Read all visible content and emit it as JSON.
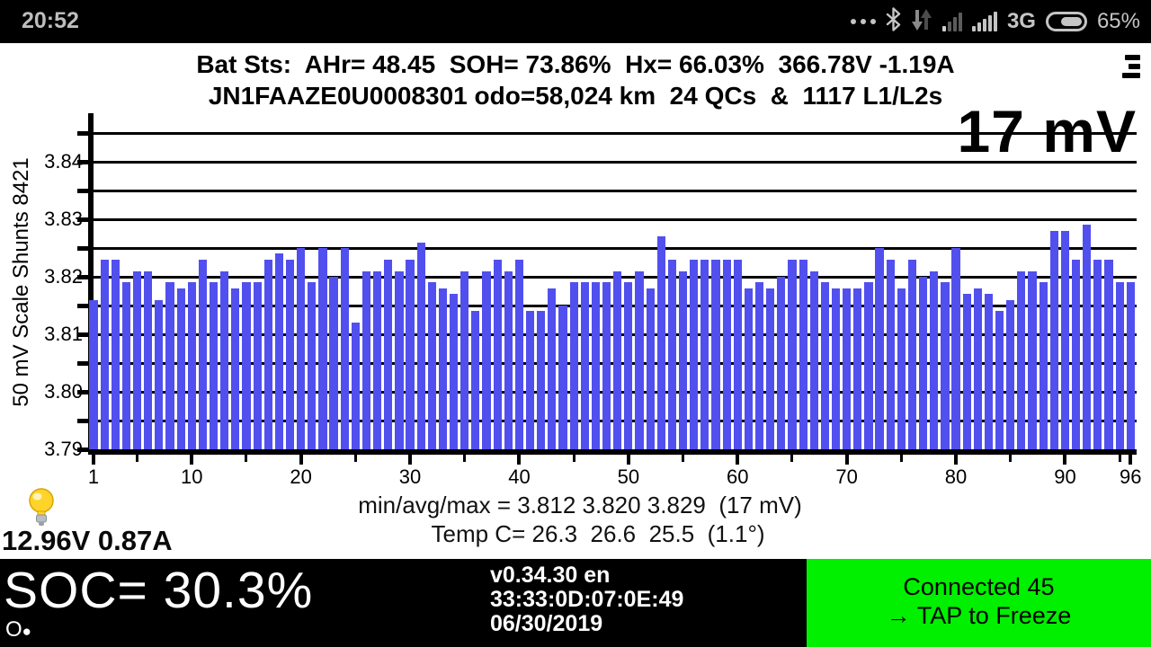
{
  "status_bar": {
    "time": "20:52",
    "network_mode": "3G",
    "battery_percent": "65%"
  },
  "header": {
    "line1": "Bat Sts:  AHr= 48.45  SOH= 73.86%  Hx= 66.03%  366.78V -1.19A",
    "line2": "JN1FAAZE0U0008301 odo=58,024 km  24 QCs  &  1117 L1/L2s"
  },
  "chart_data": {
    "type": "bar",
    "ylabel": "50 mV Scale  Shunts 8421",
    "annotation": "17 mV",
    "baseline": 3.79,
    "ylim": [
      3.79,
      3.8485
    ],
    "grid_step": 0.005,
    "grid_values": [
      3.795,
      3.8,
      3.805,
      3.81,
      3.815,
      3.82,
      3.825,
      3.83,
      3.835,
      3.84,
      3.845
    ],
    "y_tick_labels": [
      3.84,
      3.83,
      3.82,
      3.81,
      3.8,
      3.79
    ],
    "x_major_ticks": [
      1,
      10,
      20,
      30,
      40,
      50,
      60,
      70,
      80,
      90,
      96
    ],
    "x_minor_ticks": [
      5,
      15,
      25,
      35,
      45,
      55,
      65,
      75,
      85,
      95
    ],
    "bar_color": "#5150ee",
    "categories": "battery cells 1-96",
    "values": [
      3.816,
      3.823,
      3.823,
      3.819,
      3.821,
      3.821,
      3.816,
      3.819,
      3.818,
      3.819,
      3.823,
      3.819,
      3.821,
      3.818,
      3.819,
      3.819,
      3.823,
      3.824,
      3.823,
      3.825,
      3.819,
      3.825,
      3.82,
      3.825,
      3.812,
      3.821,
      3.821,
      3.823,
      3.821,
      3.823,
      3.826,
      3.819,
      3.818,
      3.817,
      3.821,
      3.814,
      3.821,
      3.823,
      3.821,
      3.823,
      3.814,
      3.814,
      3.818,
      3.815,
      3.819,
      3.819,
      3.819,
      3.819,
      3.821,
      3.819,
      3.821,
      3.818,
      3.827,
      3.823,
      3.821,
      3.823,
      3.823,
      3.823,
      3.823,
      3.823,
      3.818,
      3.819,
      3.818,
      3.82,
      3.823,
      3.823,
      3.821,
      3.819,
      3.818,
      3.818,
      3.818,
      3.819,
      3.825,
      3.823,
      3.818,
      3.823,
      3.82,
      3.821,
      3.819,
      3.825,
      3.817,
      3.818,
      3.817,
      3.814,
      3.816,
      3.821,
      3.821,
      3.819,
      3.828,
      3.828,
      3.823,
      3.829,
      3.823,
      3.823,
      3.819,
      3.819
    ],
    "stats_line": "min/avg/max = 3.812 3.820 3.829  (17 mV)",
    "temp_line": "Temp C= 26.3  26.6  25.5  (1.1°)"
  },
  "footer": {
    "aux_reading": "12.96V 0.87A",
    "soc": "SOC= 30.3%",
    "page_indicator_o": "O",
    "page_indicator_dot": "●",
    "version": "v0.34.30 en",
    "device_id": "33:33:0D:07:0E:49",
    "date": "06/30/2019",
    "connection_line1": "Connected 45",
    "connection_line2": "→ TAP to Freeze",
    "connection_bg": "#00f000"
  }
}
